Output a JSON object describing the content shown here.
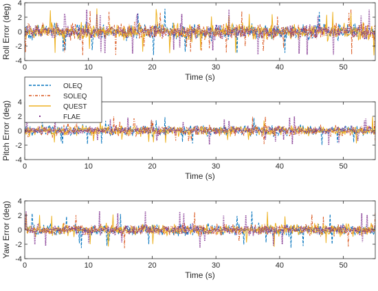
{
  "chart_data": [
    {
      "type": "line",
      "xlabel": "Time (s)",
      "ylabel": "Roll Error (deg)",
      "xlim": [
        0,
        55
      ],
      "ylim": [
        -4,
        4
      ],
      "x_ticks": [
        0,
        10,
        20,
        30,
        40,
        50
      ],
      "y_ticks": [
        -4,
        -2,
        0,
        2,
        4
      ],
      "grid": false,
      "noise": {
        "spread_deg": 0.7,
        "peak_deg": 3.3,
        "seed": 11
      },
      "series": [
        {
          "name": "OLEQ",
          "color": "#0072BD",
          "style": "dashed",
          "values_summary": "noise around 0, roughly -3 to 3 deg"
        },
        {
          "name": "SOLEQ",
          "color": "#D95319",
          "style": "dashdot",
          "values_summary": "noise around 0, roughly -3 to 3 deg"
        },
        {
          "name": "QUEST",
          "color": "#EDB120",
          "style": "solid",
          "values_summary": "noise around 0, roughly -3 to 3.3 deg"
        },
        {
          "name": "FLAE",
          "color": "#7E2F8E",
          "style": "dotted",
          "values_summary": "noise around 0, roughly -2 to 2 deg"
        }
      ]
    },
    {
      "type": "line",
      "xlabel": "Time (s)",
      "ylabel": "Pitch Error (deg)",
      "xlim": [
        0,
        55
      ],
      "ylim": [
        -4,
        4
      ],
      "x_ticks": [
        0,
        10,
        20,
        30,
        40,
        50
      ],
      "y_ticks": [
        -4,
        -2,
        0,
        2,
        4
      ],
      "grid": false,
      "noise": {
        "spread_deg": 0.45,
        "peak_deg": 2.0,
        "seed": 23
      },
      "series": [
        {
          "name": "OLEQ",
          "color": "#0072BD",
          "style": "dashed",
          "values_summary": "noise around 0, roughly -2 to 2 deg"
        },
        {
          "name": "SOLEQ",
          "color": "#D95319",
          "style": "dashdot",
          "values_summary": "noise around 0, roughly -2 to 2 deg"
        },
        {
          "name": "QUEST",
          "color": "#EDB120",
          "style": "solid",
          "values_summary": "noise around 0, roughly -2 to 2 deg"
        },
        {
          "name": "FLAE",
          "color": "#7E2F8E",
          "style": "dotted",
          "values_summary": "noise around 0, roughly -1.5 to 1.5 deg"
        }
      ]
    },
    {
      "type": "line",
      "xlabel": "Time (s)",
      "ylabel": "Yaw Error (deg)",
      "xlim": [
        0,
        55
      ],
      "ylim": [
        -4,
        4
      ],
      "x_ticks": [
        0,
        10,
        20,
        30,
        40,
        50
      ],
      "y_ticks": [
        -4,
        -2,
        0,
        2,
        4
      ],
      "grid": false,
      "noise": {
        "spread_deg": 0.5,
        "peak_deg": 2.6,
        "seed": 37
      },
      "series": [
        {
          "name": "OLEQ",
          "color": "#0072BD",
          "style": "dashed",
          "values_summary": "noise around 0, roughly -2.5 to 2.5 deg"
        },
        {
          "name": "SOLEQ",
          "color": "#D95319",
          "style": "dashdot",
          "values_summary": "noise around 0, roughly -2.5 to 2.5 deg"
        },
        {
          "name": "QUEST",
          "color": "#EDB120",
          "style": "solid",
          "values_summary": "noise around 0, roughly -2.5 to 2.5 deg"
        },
        {
          "name": "FLAE",
          "color": "#7E2F8E",
          "style": "dotted",
          "values_summary": "noise around 0, roughly -1.5 to 1.5 deg"
        }
      ]
    }
  ],
  "legend": {
    "placement": "left, between top and middle panels",
    "entries": [
      {
        "label": "OLEQ",
        "color": "#0072BD",
        "style": "dashed"
      },
      {
        "label": "SOLEQ",
        "color": "#D95319",
        "style": "dashdot"
      },
      {
        "label": "QUEST",
        "color": "#EDB120",
        "style": "solid"
      },
      {
        "label": "FLAE",
        "color": "#7E2F8E",
        "style": "dotted"
      }
    ]
  }
}
